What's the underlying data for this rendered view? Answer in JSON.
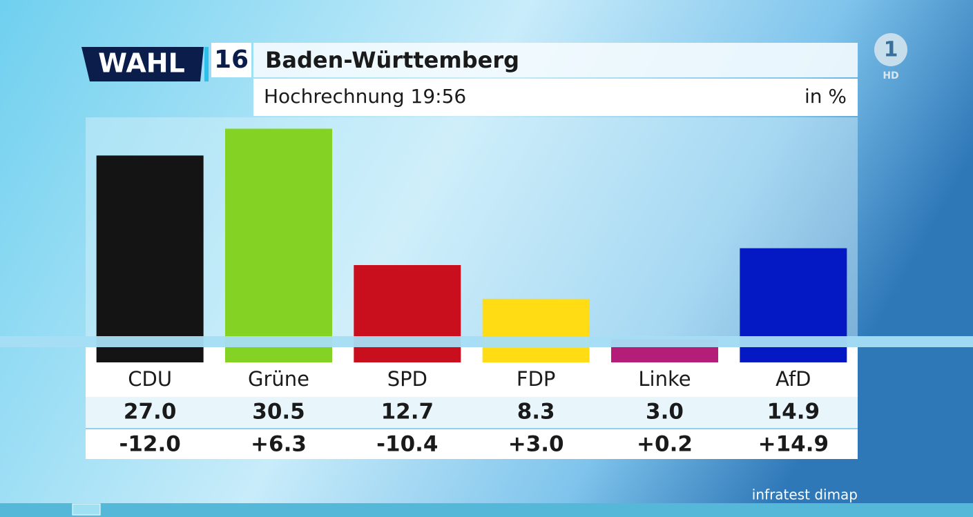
{
  "chart_data": {
    "type": "bar",
    "brand": "WAHL",
    "brand_number": "16",
    "title": "Baden-Württemberg",
    "subtitle": "Hochrechnung 19:56",
    "unit": "in %",
    "categories": [
      "CDU",
      "Grüne",
      "SPD",
      "FDP",
      "Linke",
      "AfD"
    ],
    "values": [
      27.0,
      30.5,
      12.7,
      8.3,
      3.0,
      14.9
    ],
    "value_labels": [
      "27.0",
      "30.5",
      "12.7",
      "8.3",
      "3.0",
      "14.9"
    ],
    "changes": [
      "-12.0",
      "+6.3",
      "-10.4",
      "+3.0",
      "+0.2",
      "+14.9"
    ],
    "colors": [
      "#141414",
      "#84d324",
      "#c90f1d",
      "#ffdc14",
      "#b51e78",
      "#0418c4"
    ],
    "source": "infratest dimap",
    "channel": "1",
    "channel_badge": "HD"
  }
}
